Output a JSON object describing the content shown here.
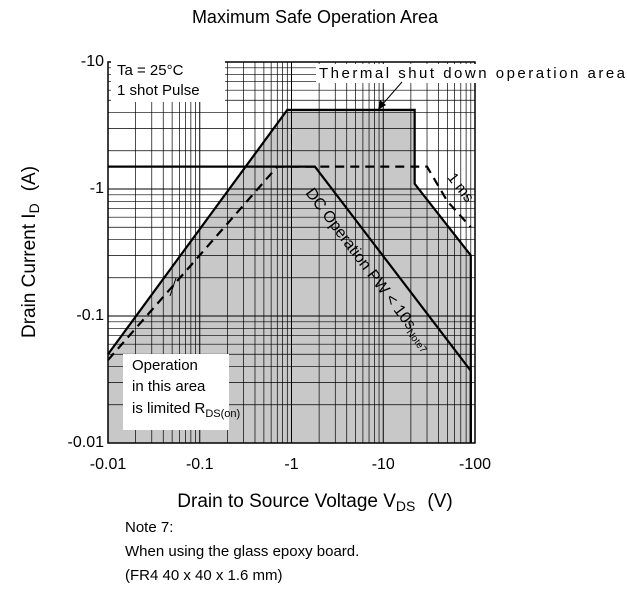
{
  "chart_data": {
    "type": "line",
    "title": "Maximum Safe Operation Area",
    "x_label": {
      "text": "Drain to Source Voltage  V",
      "subscript": "DS",
      "unit": "(V)"
    },
    "y_label": {
      "text": "Drain Current  I",
      "subscript": "D",
      "unit": "(A)"
    },
    "log_scale": true,
    "grid": true,
    "fill_color": "#c8c8c8",
    "xlim": [
      -0.01,
      -100
    ],
    "xticks": [
      -0.01,
      -0.1,
      -1,
      -10,
      -100
    ],
    "ylim": [
      -0.01,
      -10
    ],
    "yticks": [
      -0.01,
      -0.1,
      -1,
      -10
    ],
    "series": [
      {
        "color": "#000000",
        "dash": false,
        "fill": true,
        "x": [
          -0.01,
          -0.9,
          -22,
          -22,
          -90,
          -90
        ],
        "values": [
          -0.05,
          -4.2,
          -4.2,
          -1.1,
          -0.3,
          -0.01
        ]
      },
      {
        "color": "#000000",
        "dash": false,
        "fill": false,
        "x": [
          -0.01,
          -1.8,
          -90,
          -90
        ],
        "values": [
          -1.5,
          -1.5,
          -0.037,
          -0.01
        ]
      },
      {
        "color": "#000000",
        "dash": true,
        "fill": false,
        "x": [
          -0.01,
          -0.7,
          -30,
          -50,
          -90
        ],
        "values": [
          -0.045,
          -1.5,
          -1.5,
          -0.8,
          -0.5
        ]
      }
    ],
    "annotations": [
      {
        "text": "Ta = 25°C"
      },
      {
        "text": "1 shot Pulse"
      },
      {
        "text": "Thermal shut down operation area"
      },
      {
        "text": "1 ms"
      },
      {
        "text": "DC Operation PW < 10s",
        "superscript": "Note7"
      },
      {
        "text": "Operation"
      },
      {
        "text": "in this area"
      },
      {
        "text": "is limited R",
        "subscript": "DS(on)"
      }
    ],
    "notes": [
      "Note 7:",
      "When using the glass epoxy board.",
      "(FR4  40 x 40 x 1.6 mm)"
    ]
  }
}
